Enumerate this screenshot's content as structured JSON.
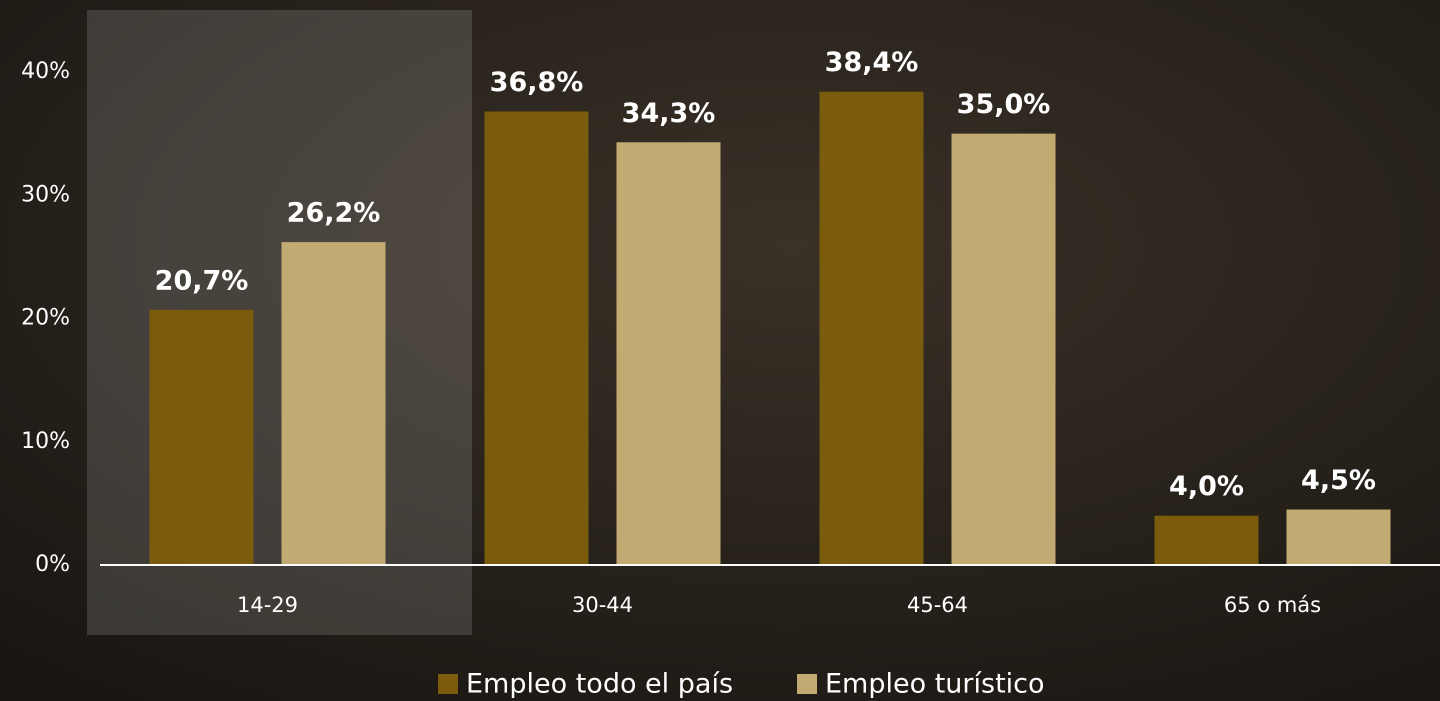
{
  "chart_data": {
    "type": "bar",
    "categories": [
      "14-29",
      "30-44",
      "45-64",
      "65 o más"
    ],
    "series": [
      {
        "name": "Empleo todo el país",
        "color": "#7a5c0c",
        "values": [
          20.7,
          36.8,
          38.4,
          4.0
        ],
        "value_labels": [
          "20,7%",
          "36,8%",
          "38,4%",
          "4,0%"
        ]
      },
      {
        "name": "Empleo turístico",
        "color": "#c2ab72",
        "values": [
          26.2,
          34.3,
          35.0,
          4.5
        ],
        "value_labels": [
          "26,2%",
          "34,3%",
          "35,0%",
          "4,5%"
        ]
      }
    ],
    "ylim": [
      0,
      45
    ],
    "yticks": [
      {
        "value": 0,
        "label": "0%"
      },
      {
        "value": 10,
        "label": "10%"
      },
      {
        "value": 20,
        "label": "20%"
      },
      {
        "value": 30,
        "label": "30%"
      },
      {
        "value": 40,
        "label": "40%"
      }
    ],
    "legend": "bottom"
  }
}
